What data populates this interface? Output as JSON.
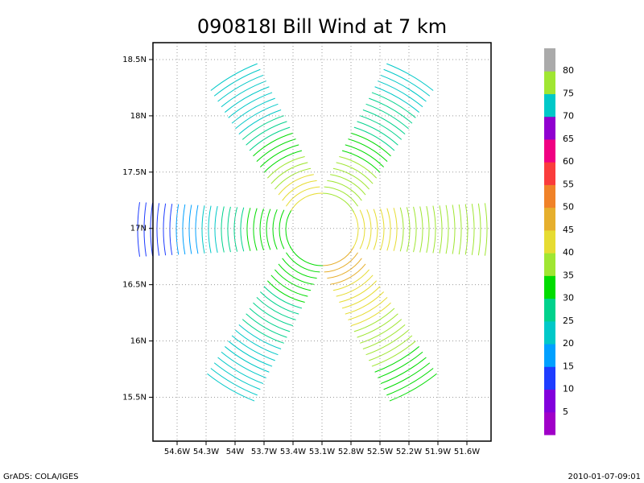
{
  "chart_data": {
    "type": "map",
    "title": "090818I Bill Wind at 7 km",
    "xlim": [
      -54.85,
      -51.35
    ],
    "xticks": [
      {
        "value": -54.6,
        "label": "54.6W"
      },
      {
        "value": -54.3,
        "label": "54.3W"
      },
      {
        "value": -54,
        "label": "54W"
      },
      {
        "value": -53.7,
        "label": "53.7W"
      },
      {
        "value": -53.4,
        "label": "53.4W"
      },
      {
        "value": -53.1,
        "label": "53.1W"
      },
      {
        "value": -52.8,
        "label": "52.8W"
      },
      {
        "value": -52.5,
        "label": "52.5W"
      },
      {
        "value": -52.2,
        "label": "52.2W"
      },
      {
        "value": -51.9,
        "label": "51.9W"
      },
      {
        "value": -51.6,
        "label": "51.6W"
      }
    ],
    "ylim": [
      15.11,
      18.65
    ],
    "yticks": [
      {
        "value": 15.5,
        "label": "15.5N"
      },
      {
        "value": 16,
        "label": "16N"
      },
      {
        "value": 16.5,
        "label": "16.5N"
      },
      {
        "value": 17,
        "label": "17N"
      },
      {
        "value": 17.5,
        "label": "17.5N"
      },
      {
        "value": 18,
        "label": "18N"
      },
      {
        "value": 18.5,
        "label": "18.5N"
      }
    ],
    "grid": true,
    "colorbar": {
      "levels": [
        5,
        10,
        15,
        20,
        25,
        30,
        35,
        40,
        45,
        50,
        55,
        60,
        65,
        70,
        75,
        80
      ],
      "colors": [
        "#a000c8",
        "#8200dc",
        "#1e3cff",
        "#00a0ff",
        "#00c8c8",
        "#00d28c",
        "#00dc00",
        "#a0e632",
        "#e6dc32",
        "#e6af2d",
        "#f08228",
        "#fa3c3c",
        "#f00082",
        "#9000d0",
        "#00c8c8",
        "#a0e632",
        "#aaaaaa"
      ]
    },
    "footer_left": "GrADS: COLA/IGES",
    "footer_right": "2010-01-07-09:01"
  }
}
